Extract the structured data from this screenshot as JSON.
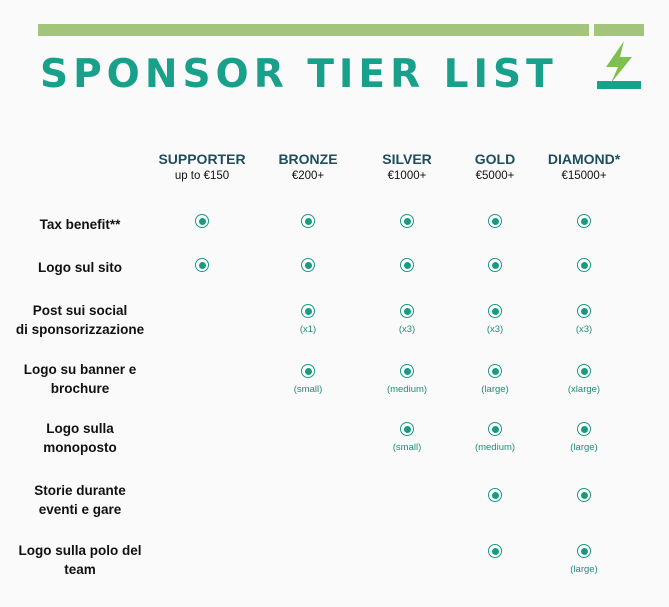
{
  "title": "SPONSOR TIER LIST",
  "brand_color": "#18a08a",
  "accent_color": "#a3c47b",
  "tiers": [
    {
      "name": "SUPPORTER",
      "price": "up to €150"
    },
    {
      "name": "BRONZE",
      "price": "€200+"
    },
    {
      "name": "SILVER",
      "price": "€1000+"
    },
    {
      "name": "GOLD",
      "price": "€5000+"
    },
    {
      "name": "DIAMOND*",
      "price": "€15000+"
    }
  ],
  "rows": [
    {
      "label": [
        "Tax benefit**"
      ],
      "cells": [
        {
          "check": true,
          "note": ""
        },
        {
          "check": true,
          "note": ""
        },
        {
          "check": true,
          "note": ""
        },
        {
          "check": true,
          "note": ""
        },
        {
          "check": true,
          "note": ""
        }
      ]
    },
    {
      "label": [
        "Logo sul sito"
      ],
      "cells": [
        {
          "check": true,
          "note": ""
        },
        {
          "check": true,
          "note": ""
        },
        {
          "check": true,
          "note": ""
        },
        {
          "check": true,
          "note": ""
        },
        {
          "check": true,
          "note": ""
        }
      ]
    },
    {
      "label": [
        "Post sui social",
        "di sponsorizzazione"
      ],
      "cells": [
        {
          "check": false,
          "note": ""
        },
        {
          "check": true,
          "note": "(x1)"
        },
        {
          "check": true,
          "note": "(x3)"
        },
        {
          "check": true,
          "note": "(x3)"
        },
        {
          "check": true,
          "note": "(x3)"
        }
      ]
    },
    {
      "label": [
        "Logo su banner e",
        "brochure"
      ],
      "cells": [
        {
          "check": false,
          "note": ""
        },
        {
          "check": true,
          "note": "(small)"
        },
        {
          "check": true,
          "note": "(medium)"
        },
        {
          "check": true,
          "note": "(large)"
        },
        {
          "check": true,
          "note": "(xlarge)"
        }
      ]
    },
    {
      "label": [
        "Logo sulla",
        "monoposto"
      ],
      "cells": [
        {
          "check": false,
          "note": ""
        },
        {
          "check": false,
          "note": ""
        },
        {
          "check": true,
          "note": "(small)"
        },
        {
          "check": true,
          "note": "(medium)"
        },
        {
          "check": true,
          "note": "(large)"
        }
      ]
    },
    {
      "label": [
        "Storie durante",
        "eventi e gare"
      ],
      "cells": [
        {
          "check": false,
          "note": ""
        },
        {
          "check": false,
          "note": ""
        },
        {
          "check": false,
          "note": ""
        },
        {
          "check": true,
          "note": ""
        },
        {
          "check": true,
          "note": ""
        }
      ]
    },
    {
      "label": [
        "Logo sulla polo del",
        "team"
      ],
      "cells": [
        {
          "check": false,
          "note": ""
        },
        {
          "check": false,
          "note": ""
        },
        {
          "check": false,
          "note": ""
        },
        {
          "check": true,
          "note": ""
        },
        {
          "check": true,
          "note": "(large)"
        }
      ]
    }
  ]
}
